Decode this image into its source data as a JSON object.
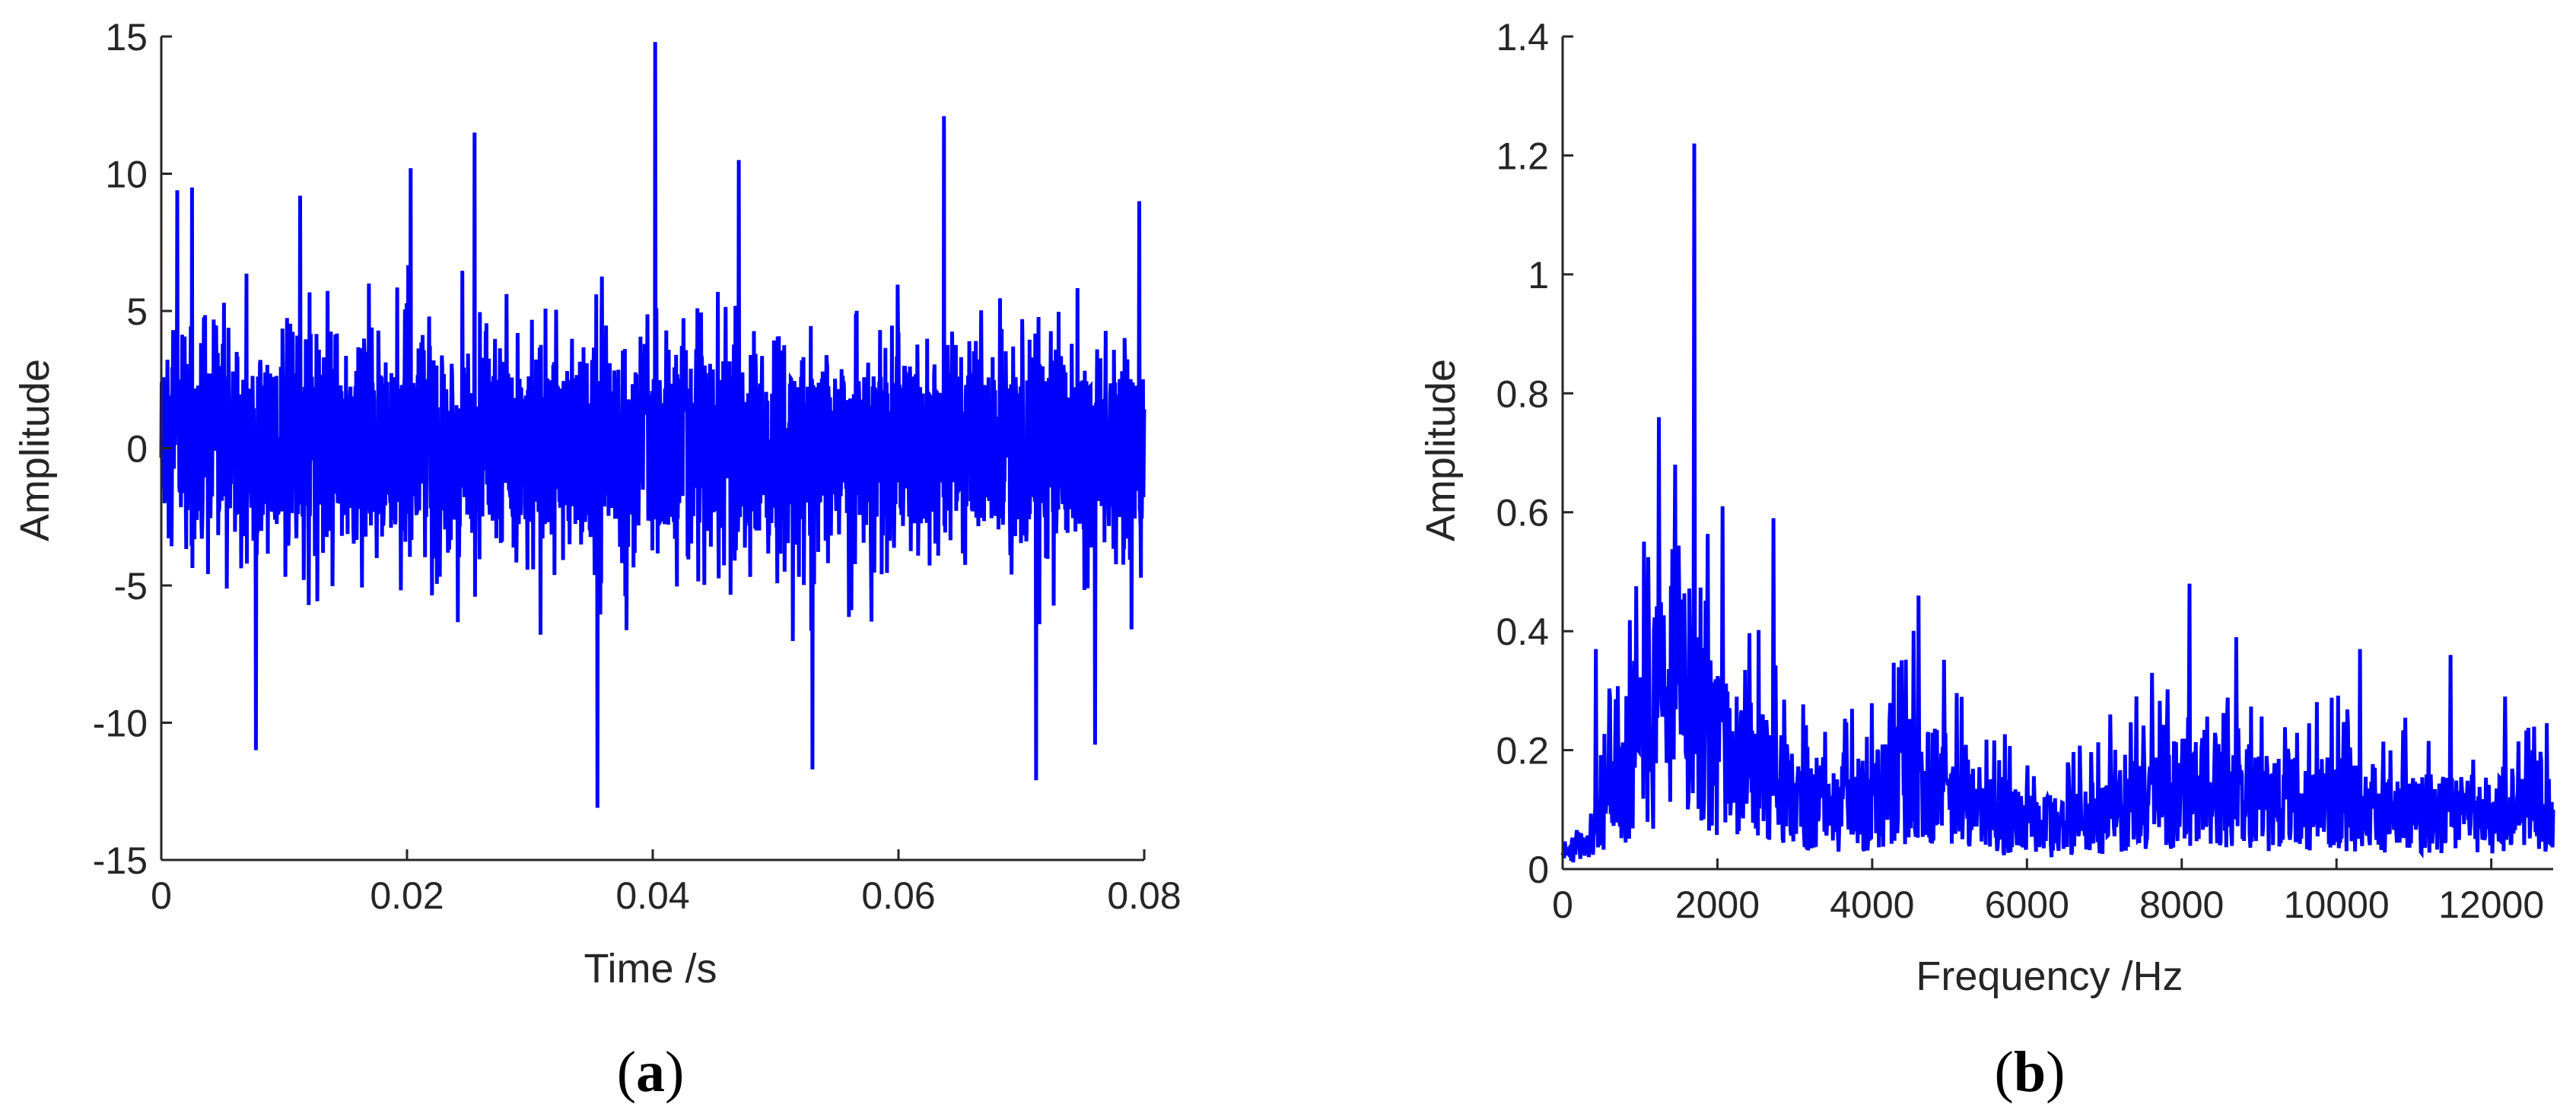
{
  "colors": {
    "series": "#0000ff",
    "axis": "#262626",
    "background": "#ffffff"
  },
  "chart_data": [
    {
      "type": "line",
      "panel_label": {
        "open": "(",
        "letter": "a",
        "close": ")"
      },
      "title": "",
      "xlabel": "Time /s",
      "ylabel": "Amplitude",
      "xlim": [
        0,
        0.08
      ],
      "ylim": [
        -15,
        15
      ],
      "xticks": [
        0,
        0.02,
        0.04,
        0.06,
        0.08
      ],
      "xtick_labels": [
        "0",
        "0.02",
        "0.04",
        "0.06",
        "0.08"
      ],
      "yticks": [
        -15,
        -10,
        -5,
        0,
        5,
        10,
        15
      ],
      "ytick_labels": [
        "-15",
        "-10",
        "-5",
        "0",
        "5",
        "10",
        "15"
      ],
      "grid": false,
      "series": [
        {
          "description": "dense noisy vibration signal, typical envelope about ±6, sparse spikes",
          "x_range": [
            0,
            0.08
          ],
          "typical_amplitude": 6,
          "notable_peaks": [
            [
              0.0013,
              9.4
            ],
            [
              0.0025,
              9.5
            ],
            [
              0.0077,
              -11.0
            ],
            [
              0.0113,
              9.2
            ],
            [
              0.0203,
              10.2
            ],
            [
              0.0255,
              11.5
            ],
            [
              0.0355,
              -13.1
            ],
            [
              0.0402,
              14.8
            ],
            [
              0.047,
              10.5
            ],
            [
              0.053,
              -11.7
            ],
            [
              0.0637,
              12.1
            ],
            [
              0.0712,
              -12.1
            ],
            [
              0.076,
              -10.8
            ],
            [
              0.0796,
              9.0
            ]
          ]
        }
      ]
    },
    {
      "type": "line",
      "panel_label": {
        "open": "(",
        "letter": "b",
        "close": ")"
      },
      "title": "",
      "xlabel": "Frequency /Hz",
      "ylabel": "Amplitude",
      "xlim": [
        0,
        12800
      ],
      "ylim": [
        0,
        1.4
      ],
      "xticks": [
        0,
        2000,
        4000,
        6000,
        8000,
        10000,
        12000
      ],
      "xtick_labels": [
        "0",
        "2000",
        "4000",
        "6000",
        "8000",
        "10000",
        "12000"
      ],
      "yticks": [
        0,
        0.2,
        0.4,
        0.6,
        0.8,
        1,
        1.2,
        1.4
      ],
      "ytick_labels": [
        "0",
        "0.2",
        "0.4",
        "0.6",
        "0.8",
        "1",
        "1.2",
        "1.4"
      ],
      "grid": false,
      "series": [
        {
          "description": "amplitude spectrum",
          "spectral_envelope": [
            [
              0,
              0.03
            ],
            [
              300,
              0.04
            ],
            [
              500,
              0.1
            ],
            [
              800,
              0.17
            ],
            [
              1100,
              0.25
            ],
            [
              1400,
              0.34
            ],
            [
              1700,
              0.3
            ],
            [
              2000,
              0.22
            ],
            [
              2500,
              0.17
            ],
            [
              3000,
              0.13
            ],
            [
              3500,
              0.11
            ],
            [
              4000,
              0.12
            ],
            [
              4500,
              0.17
            ],
            [
              5000,
              0.14
            ],
            [
              5500,
              0.1
            ],
            [
              6000,
              0.08
            ],
            [
              6500,
              0.08
            ],
            [
              7000,
              0.1
            ],
            [
              7500,
              0.13
            ],
            [
              8000,
              0.14
            ],
            [
              8500,
              0.14
            ],
            [
              9000,
              0.12
            ],
            [
              9500,
              0.12
            ],
            [
              10000,
              0.12
            ],
            [
              10500,
              0.11
            ],
            [
              11000,
              0.1
            ],
            [
              11500,
              0.1
            ],
            [
              12000,
              0.1
            ],
            [
              12500,
              0.1
            ],
            [
              12800,
              0.1
            ]
          ],
          "notable_peaks": [
            [
              430,
              0.37
            ],
            [
              920,
              0.35
            ],
            [
              1240,
              0.76
            ],
            [
              1450,
              0.68
            ],
            [
              1700,
              1.22
            ],
            [
              2070,
              0.61
            ],
            [
              2720,
              0.59
            ],
            [
              4600,
              0.46
            ],
            [
              7620,
              0.33
            ],
            [
              8100,
              0.48
            ],
            [
              8700,
              0.39
            ],
            [
              10300,
              0.37
            ],
            [
              11470,
              0.36
            ],
            [
              12180,
              0.29
            ]
          ]
        }
      ]
    }
  ]
}
